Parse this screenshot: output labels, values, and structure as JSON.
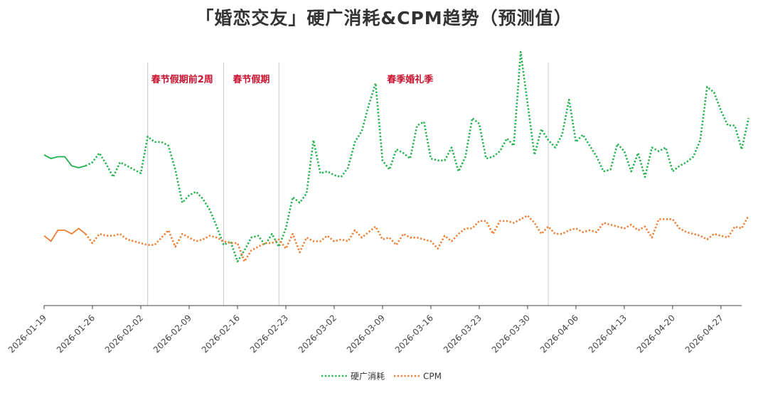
{
  "title": "「婚恋交友」硬广消耗&CPM趋势（预测值）",
  "colors": {
    "spend": "#22b14c",
    "cpm": "#ee7d31",
    "annotation": "#c8102e",
    "divider": "#c8c8c8",
    "axis": "#444444"
  },
  "chart_data": {
    "type": "line",
    "title": "「婚恋交友」硬广消耗&CPM趋势（预测值）",
    "x_start": "2026-01-19",
    "x_end": "2026-04-30",
    "x_ticks": [
      "2026-01-19",
      "2026-01-26",
      "2026-02-02",
      "2026-02-09",
      "2026-02-16",
      "2026-02-23",
      "2026-03-02",
      "2026-03-09",
      "2026-03-16",
      "2026-03-23",
      "2026-03-30",
      "2026-04-06",
      "2026-04-13",
      "2026-04-20",
      "2026-04-27"
    ],
    "grid": false,
    "legend_position": "bottom",
    "legend": [
      "硬广消耗",
      "CPM"
    ],
    "dividers": [
      "2026-02-03",
      "2026-02-14",
      "2026-02-22",
      "2026-04-02"
    ],
    "annotations": [
      {
        "text": "春节假期前2周",
        "x": "2026-02-08"
      },
      {
        "text": "春节假期",
        "x": "2026-02-18"
      },
      {
        "text": "春季婚礼季",
        "x": "2026-03-13"
      }
    ],
    "actual_until": "2026-01-25",
    "series": [
      {
        "name": "硬广消耗",
        "values": [
          0.82,
          0.8,
          0.81,
          0.81,
          0.76,
          0.75,
          0.76,
          0.78,
          0.83,
          0.77,
          0.7,
          0.78,
          0.76,
          0.74,
          0.72,
          0.92,
          0.89,
          0.89,
          0.87,
          0.74,
          0.56,
          0.6,
          0.62,
          0.58,
          0.52,
          0.43,
          0.33,
          0.35,
          0.24,
          0.3,
          0.37,
          0.38,
          0.33,
          0.39,
          0.32,
          0.42,
          0.59,
          0.56,
          0.61,
          0.9,
          0.72,
          0.73,
          0.71,
          0.7,
          0.75,
          0.89,
          0.95,
          1.09,
          1.21,
          0.79,
          0.74,
          0.85,
          0.83,
          0.8,
          0.98,
          1.0,
          0.8,
          0.79,
          0.79,
          0.86,
          0.73,
          0.81,
          1.02,
          0.99,
          0.8,
          0.81,
          0.84,
          0.91,
          0.87,
          1.38,
          1.1,
          0.82,
          0.96,
          0.9,
          0.86,
          0.93,
          1.12,
          0.89,
          0.93,
          0.87,
          0.81,
          0.73,
          0.74,
          0.88,
          0.84,
          0.73,
          0.83,
          0.7,
          0.86,
          0.84,
          0.86,
          0.73,
          0.76,
          0.78,
          0.81,
          0.9,
          1.19,
          1.16,
          1.06,
          0.98,
          0.98,
          0.85,
          1.02
        ]
      },
      {
        "name": "CPM",
        "values": [
          0.38,
          0.35,
          0.41,
          0.41,
          0.39,
          0.42,
          0.39,
          0.34,
          0.39,
          0.38,
          0.38,
          0.39,
          0.36,
          0.35,
          0.34,
          0.33,
          0.33,
          0.37,
          0.41,
          0.32,
          0.39,
          0.37,
          0.35,
          0.36,
          0.38,
          0.37,
          0.35,
          0.34,
          0.34,
          0.24,
          0.3,
          0.32,
          0.34,
          0.34,
          0.36,
          0.31,
          0.39,
          0.29,
          0.37,
          0.35,
          0.35,
          0.38,
          0.35,
          0.36,
          0.35,
          0.41,
          0.37,
          0.4,
          0.43,
          0.36,
          0.37,
          0.33,
          0.39,
          0.37,
          0.37,
          0.36,
          0.35,
          0.31,
          0.38,
          0.35,
          0.39,
          0.42,
          0.42,
          0.46,
          0.46,
          0.39,
          0.46,
          0.46,
          0.45,
          0.47,
          0.49,
          0.45,
          0.39,
          0.43,
          0.39,
          0.39,
          0.41,
          0.42,
          0.4,
          0.41,
          0.4,
          0.45,
          0.44,
          0.43,
          0.42,
          0.44,
          0.41,
          0.43,
          0.37,
          0.47,
          0.47,
          0.47,
          0.42,
          0.4,
          0.39,
          0.38,
          0.36,
          0.39,
          0.38,
          0.37,
          0.43,
          0.42,
          0.49
        ]
      }
    ]
  }
}
